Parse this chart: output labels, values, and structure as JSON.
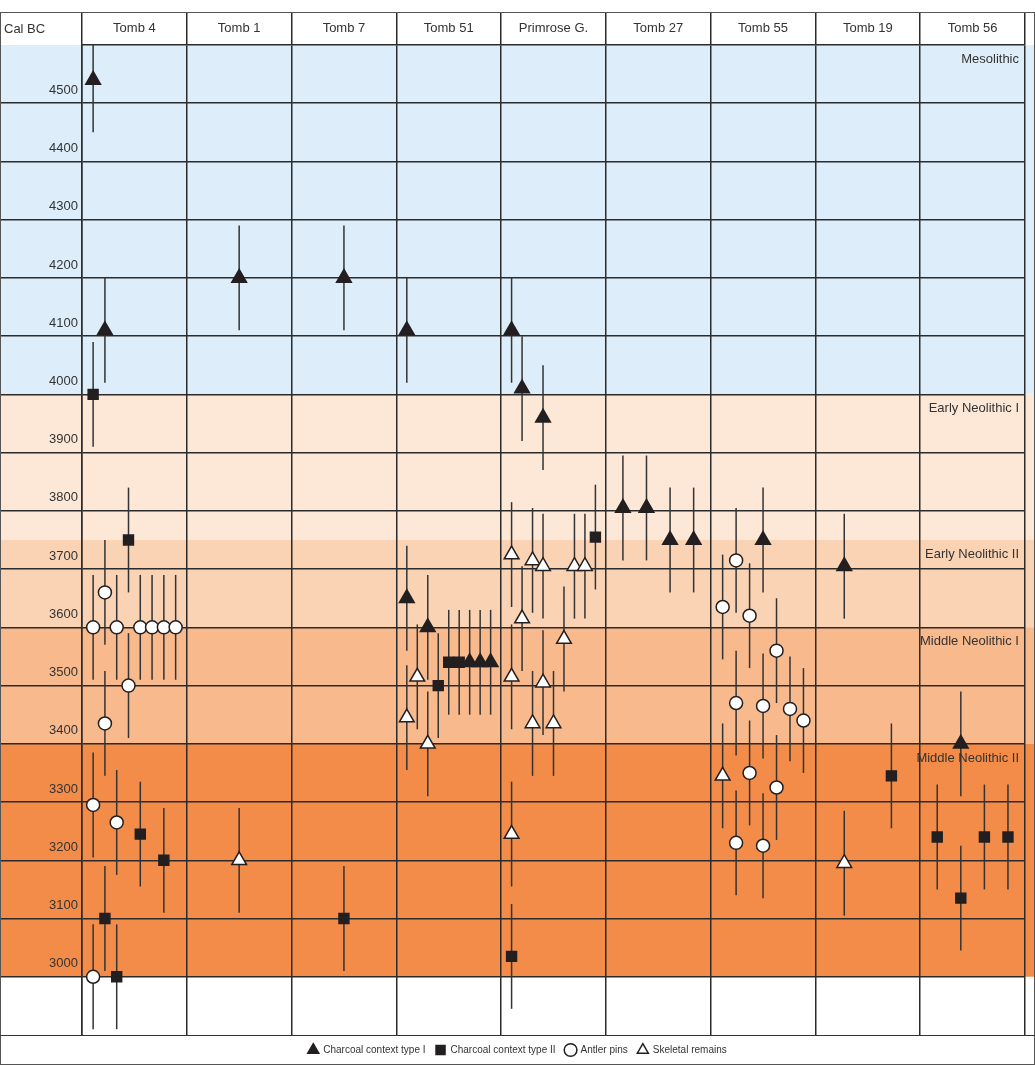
{
  "chart_data": {
    "type": "scatter",
    "ylabel": "Cal BC",
    "categories": [
      "Tomb 4",
      "Tomb 1",
      "Tomb 7",
      "Tomb 51",
      "Primrose G.",
      "Tomb 27",
      "Tomb 55",
      "Tomb 19",
      "Tomb 56"
    ],
    "ylim": [
      2900,
      4600
    ],
    "yticks": [
      3000,
      3100,
      3200,
      3300,
      3400,
      3500,
      3600,
      3700,
      3800,
      3900,
      4000,
      4100,
      4200,
      4300,
      4400,
      4500
    ],
    "grid": true,
    "legend": "bottom",
    "bands": [
      {
        "axis": "y",
        "from": 4000,
        "to": 4600,
        "label": "Mesolithic",
        "color": "#ddeefa"
      },
      {
        "axis": "y",
        "from": 3750,
        "to": 4000,
        "label": "Early Neolithic I",
        "color": "#fde8d8"
      },
      {
        "axis": "y",
        "from": 3600,
        "to": 3750,
        "label": "Early Neolithic II",
        "color": "#fad3b5"
      },
      {
        "axis": "y",
        "from": 3400,
        "to": 3600,
        "label": "Middle Neolithic I",
        "color": "#f8b98c"
      },
      {
        "axis": "y",
        "from": 3000,
        "to": 3400,
        "label": "Middle Neolithic II",
        "color": "#f28c48"
      }
    ],
    "series": [
      {
        "name": "Charcoal context type I",
        "color": "#231f20",
        "marker": "triangle",
        "x": [
          "Tomb 4",
          "Tomb 4",
          "Tomb 1",
          "Tomb 7",
          "Tomb 51",
          "Tomb 51",
          "Tomb 51",
          "Tomb 51",
          "Tomb 51",
          "Tomb 51",
          "Primrose G.",
          "Primrose G.",
          "Primrose G.",
          "Tomb 27",
          "Tomb 27",
          "Tomb 27",
          "Tomb 27",
          "Tomb 55",
          "Tomb 19",
          "Tomb 56"
        ],
        "values": [
          4110,
          4540,
          4200,
          4200,
          3540,
          3650,
          3540,
          3540,
          4110,
          3600,
          4110,
          4010,
          3960,
          3805,
          3805,
          3750,
          3750,
          3750,
          3705,
          3400
        ],
        "errors": [
          90,
          [
            4450,
            4600
          ],
          90,
          90,
          90,
          90,
          90,
          90,
          90,
          90,
          90,
          90,
          90,
          90,
          90,
          90,
          90,
          90,
          90,
          90
        ]
      },
      {
        "name": "Charcoal context type II",
        "color": "#231f20",
        "marker": "square",
        "x": [
          "Tomb 4",
          "Tomb 4",
          "Tomb 4",
          "Tomb 4",
          "Tomb 4",
          "Tomb 4",
          "Tomb 7",
          "Tomb 51",
          "Tomb 51",
          "Tomb 51",
          "Primrose G.",
          "Primrose G.",
          "Tomb 19",
          "Tomb 56",
          "Tomb 56",
          "Tomb 56",
          "Tomb 56"
        ],
        "values": [
          3100,
          3000,
          3750,
          3245,
          4000,
          3200,
          3100,
          3500,
          3540,
          3540,
          3755,
          3035,
          3345,
          3240,
          3135,
          3240,
          3240
        ],
        "errors": [
          90,
          90,
          90,
          90,
          90,
          90,
          90,
          90,
          90,
          90,
          90,
          90,
          90,
          90,
          90,
          90,
          90
        ]
      },
      {
        "name": "Antler pins",
        "color": "#ffffff",
        "marker": "circle",
        "x": [
          "Tomb 4",
          "Tomb 4",
          "Tomb 4",
          "Tomb 4",
          "Tomb 4",
          "Tomb 4",
          "Tomb 4",
          "Tomb 4",
          "Tomb 4",
          "Tomb 4",
          "Tomb 4",
          "Tomb 4",
          "Tomb 55",
          "Tomb 55",
          "Tomb 55",
          "Tomb 55",
          "Tomb 55",
          "Tomb 55",
          "Tomb 55",
          "Tomb 55",
          "Tomb 55",
          "Tomb 55",
          "Tomb 55",
          "Tomb 55"
        ],
        "values": [
          3600,
          3295,
          3660,
          3600,
          3500,
          3265,
          3600,
          3600,
          3435,
          3600,
          3000,
          3600,
          3470,
          3350,
          3465,
          3230,
          3635,
          3325,
          3460,
          3715,
          3225,
          3620,
          3440,
          3560
        ],
        "errors": [
          90,
          90,
          90,
          90,
          90,
          90,
          90,
          90,
          90,
          90,
          90,
          90,
          90,
          90,
          90,
          90,
          90,
          90,
          90,
          90,
          90,
          90,
          90,
          90
        ]
      },
      {
        "name": "Skeletal remains",
        "color": "#ffffff",
        "marker": "triangle",
        "x": [
          "Tomb 1",
          "Tomb 51",
          "Tomb 51",
          "Tomb 51",
          "Primrose G.",
          "Primrose G.",
          "Primrose G.",
          "Primrose G.",
          "Primrose G.",
          "Primrose G.",
          "Primrose G.",
          "Primrose G.",
          "Primrose G.",
          "Primrose G.",
          "Primrose G.",
          "Primrose G.",
          "Tomb 55",
          "Tomb 19"
        ],
        "values": [
          3200,
          3445,
          3515,
          3400,
          3515,
          3725,
          3615,
          3435,
          3715,
          3245,
          3705,
          3435,
          3580,
          3705,
          3505,
          3705,
          3345,
          3195
        ],
        "errors": [
          90,
          90,
          90,
          90,
          90,
          90,
          90,
          90,
          90,
          90,
          90,
          90,
          90,
          90,
          90,
          90,
          90,
          90
        ]
      }
    ]
  }
}
